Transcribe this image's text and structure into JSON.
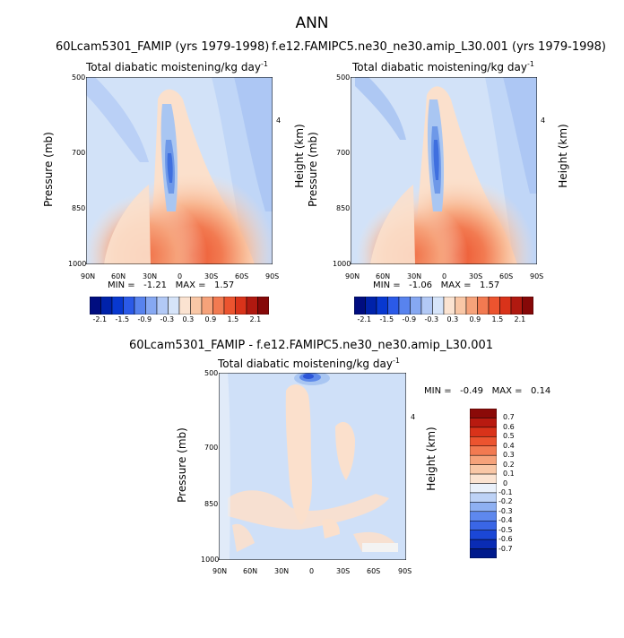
{
  "suptitle": "ANN",
  "colors": {
    "bg_blue": "#c8dcf6",
    "blue_1": "#a9c6f2",
    "blue_2": "#7fa8ea",
    "blue_3": "#4f7fe0",
    "peach_1": "#fbe0cc",
    "peach_2": "#f8c1a0",
    "orange_1": "#f59a70",
    "orange_2": "#ef6d45",
    "frame": "#000000"
  },
  "chart_data": [
    {
      "type": "heatmap",
      "panel": "top-left",
      "title": "60Lcam5301_FAMIP (yrs 1979-1998)",
      "subtitle": "Total diabatic moistening/kg day",
      "subtitle_sup": "-1",
      "ylabel": "Pressure (mb)",
      "y2label": "Height (km)",
      "xticks": [
        "90N",
        "60N",
        "30N",
        "0",
        "30S",
        "60S",
        "90S"
      ],
      "yticks": [
        500,
        700,
        850,
        1000
      ],
      "y2ticks": [
        "4"
      ],
      "ylim": [
        1000,
        500
      ],
      "min_label": "MIN =",
      "min_value": "-1.21",
      "max_label": "MAX =",
      "max_value": "1.57",
      "colorbar": {
        "orientation": "horizontal",
        "labels": [
          "-2.1",
          "-1.5",
          "-0.9",
          "-0.3",
          "0.3",
          "0.9",
          "1.5",
          "2.1"
        ],
        "colors": [
          "#000d80",
          "#0022aa",
          "#0838d0",
          "#2b5ae8",
          "#5883ee",
          "#86a8f2",
          "#b2c9f6",
          "#d6e4f9",
          "#fbe3d1",
          "#f9c7a6",
          "#f6a27a",
          "#f27a51",
          "#ec542f",
          "#d9331a",
          "#b01910",
          "#860808"
        ]
      }
    },
    {
      "type": "heatmap",
      "panel": "top-right",
      "title": "f.e12.FAMIPC5.ne30_ne30.amip_L30.001 (yrs 1979-1998)",
      "subtitle": "Total diabatic moistening/kg day",
      "subtitle_sup": "-1",
      "ylabel": "Pressure (mb)",
      "y2label": "Height (km)",
      "xticks": [
        "90N",
        "60N",
        "30N",
        "0",
        "30S",
        "60S",
        "90S"
      ],
      "yticks": [
        500,
        700,
        850,
        1000
      ],
      "y2ticks": [
        "4"
      ],
      "ylim": [
        1000,
        500
      ],
      "min_label": "MIN =",
      "min_value": "-1.06",
      "max_label": "MAX =",
      "max_value": "1.57",
      "colorbar": {
        "orientation": "horizontal",
        "labels": [
          "-2.1",
          "-1.5",
          "-0.9",
          "-0.3",
          "0.3",
          "0.9",
          "1.5",
          "2.1"
        ],
        "colors": [
          "#000d80",
          "#0022aa",
          "#0838d0",
          "#2b5ae8",
          "#5883ee",
          "#86a8f2",
          "#b2c9f6",
          "#d6e4f9",
          "#fbe3d1",
          "#f9c7a6",
          "#f6a27a",
          "#f27a51",
          "#ec542f",
          "#d9331a",
          "#b01910",
          "#860808"
        ]
      }
    },
    {
      "type": "heatmap",
      "panel": "bottom",
      "title": "60Lcam5301_FAMIP - f.e12.FAMIPC5.ne30_ne30.amip_L30.001",
      "subtitle": "Total diabatic moistening/kg day",
      "subtitle_sup": "-1",
      "ylabel": "Pressure (mb)",
      "y2label": "Height (km)",
      "xticks": [
        "90N",
        "60N",
        "30N",
        "0",
        "30S",
        "60S",
        "90S"
      ],
      "yticks": [
        500,
        700,
        850,
        1000
      ],
      "y2ticks": [
        "4"
      ],
      "ylim": [
        1000,
        500
      ],
      "min_label": "MIN =",
      "min_value": "-0.49",
      "max_label": "MAX =",
      "max_value": "0.14",
      "colorbar": {
        "orientation": "vertical",
        "labels": [
          "0.7",
          "0.6",
          "0.5",
          "0.4",
          "0.3",
          "0.2",
          "0.1",
          "0",
          "-0.1",
          "-0.2",
          "-0.3",
          "-0.4",
          "-0.5",
          "-0.6",
          "-0.7"
        ],
        "colors": [
          "#8b0a08",
          "#b81a10",
          "#d9331a",
          "#ec542f",
          "#f27a51",
          "#f6a27a",
          "#f9c7a6",
          "#fbe3d1",
          "#eaf1fb",
          "#bdd2f6",
          "#8eb0f2",
          "#5e88ee",
          "#3a66e6",
          "#1b47d6",
          "#0a2cb4",
          "#001a8c"
        ]
      }
    }
  ]
}
